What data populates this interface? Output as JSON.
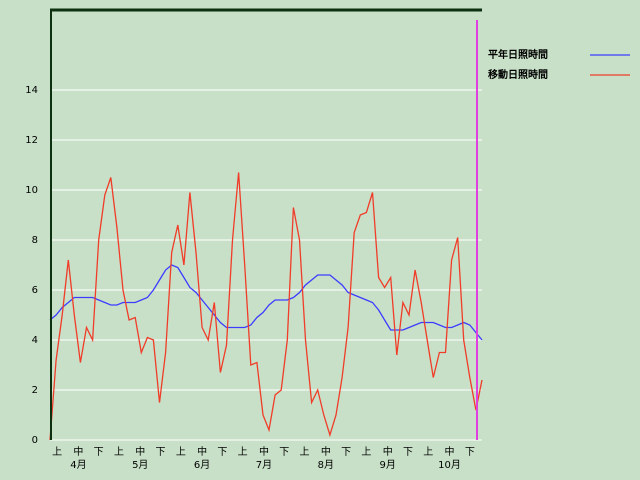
{
  "chart_data": {
    "type": "line",
    "x": [
      0,
      3,
      6,
      9,
      12,
      15,
      18,
      21,
      24,
      27,
      30,
      33,
      36,
      39,
      42,
      45,
      48,
      51,
      54,
      57,
      60,
      63,
      66,
      69,
      72,
      75,
      78,
      81,
      84,
      87,
      90,
      93,
      96,
      99,
      102,
      105,
      108,
      111,
      114,
      117,
      120,
      123,
      126,
      129,
      132,
      135,
      138,
      141,
      144,
      147,
      150,
      153,
      156,
      159,
      162,
      165,
      168,
      171,
      174,
      177,
      180,
      183,
      186,
      189,
      192,
      195,
      198,
      201,
      204,
      207,
      210,
      213
    ],
    "xlim": [
      0,
      213
    ],
    "xticks": [
      {
        "value": 3.5,
        "label": "上"
      },
      {
        "value": 14,
        "label": "中"
      },
      {
        "value": 24,
        "label": "下"
      },
      {
        "value": 34,
        "label": "上"
      },
      {
        "value": 44.5,
        "label": "中"
      },
      {
        "value": 54.5,
        "label": "下"
      },
      {
        "value": 64.5,
        "label": "上"
      },
      {
        "value": 75,
        "label": "中"
      },
      {
        "value": 85,
        "label": "下"
      },
      {
        "value": 95,
        "label": "上"
      },
      {
        "value": 105.5,
        "label": "中"
      },
      {
        "value": 115.5,
        "label": "下"
      },
      {
        "value": 125.5,
        "label": "上"
      },
      {
        "value": 136,
        "label": "中"
      },
      {
        "value": 146,
        "label": "下"
      },
      {
        "value": 156,
        "label": "上"
      },
      {
        "value": 166.5,
        "label": "中"
      },
      {
        "value": 176.5,
        "label": "下"
      },
      {
        "value": 186.5,
        "label": "上"
      },
      {
        "value": 197,
        "label": "中"
      },
      {
        "value": 207,
        "label": "下"
      }
    ],
    "month_labels": [
      {
        "value": 14,
        "label": "4月"
      },
      {
        "value": 44.5,
        "label": "5月"
      },
      {
        "value": 75,
        "label": "6月"
      },
      {
        "value": 105.5,
        "label": "7月"
      },
      {
        "value": 136,
        "label": "8月"
      },
      {
        "value": 166.5,
        "label": "9月"
      },
      {
        "value": 197,
        "label": "10月"
      }
    ],
    "ylim": [
      0,
      17.2
    ],
    "yticks": [
      0,
      2,
      4,
      6,
      8,
      10,
      12,
      14
    ],
    "grid": true,
    "legend": "top-right",
    "series": [
      {
        "name": "平年日照時間",
        "color": "#3c3cff",
        "values": [
          4.8,
          5.0,
          5.3,
          5.5,
          5.7,
          5.7,
          5.7,
          5.7,
          5.6,
          5.5,
          5.4,
          5.4,
          5.5,
          5.5,
          5.5,
          5.6,
          5.7,
          6.0,
          6.4,
          6.8,
          7.0,
          6.9,
          6.5,
          6.1,
          5.9,
          5.6,
          5.3,
          5.0,
          4.7,
          4.5,
          4.5,
          4.5,
          4.5,
          4.6,
          4.9,
          5.1,
          5.4,
          5.6,
          5.6,
          5.6,
          5.7,
          5.9,
          6.2,
          6.4,
          6.6,
          6.6,
          6.6,
          6.4,
          6.2,
          5.9,
          5.8,
          5.7,
          5.6,
          5.5,
          5.2,
          4.8,
          4.4,
          4.4,
          4.4,
          4.5,
          4.6,
          4.7,
          4.7,
          4.7,
          4.6,
          4.5,
          4.5,
          4.6,
          4.7,
          4.6,
          4.3,
          4.0
        ]
      },
      {
        "name": "移動日照時間",
        "color": "#f03c28",
        "values": [
          0,
          3.2,
          5.0,
          7.2,
          5.0,
          3.1,
          4.5,
          4.0,
          8.0,
          9.8,
          10.5,
          8.5,
          6.0,
          4.8,
          4.9,
          3.5,
          4.1,
          4.0,
          1.5,
          3.5,
          7.5,
          8.6,
          7.0,
          9.9,
          7.5,
          4.5,
          4.0,
          5.5,
          2.7,
          3.8,
          8.0,
          10.7,
          7.0,
          3.0,
          3.1,
          1.0,
          0.4,
          1.8,
          2.0,
          4.0,
          9.3,
          8.0,
          4.0,
          1.5,
          2.0,
          1.0,
          0.2,
          1.0,
          2.5,
          4.5,
          8.3,
          9.0,
          9.1,
          9.9,
          6.5,
          6.1,
          6.5,
          3.4,
          5.5,
          5.0,
          6.8,
          5.5,
          4.0,
          2.5,
          3.5,
          3.5,
          7.2,
          8.1,
          4.0,
          2.5,
          1.2,
          2.4
        ]
      }
    ]
  }
}
